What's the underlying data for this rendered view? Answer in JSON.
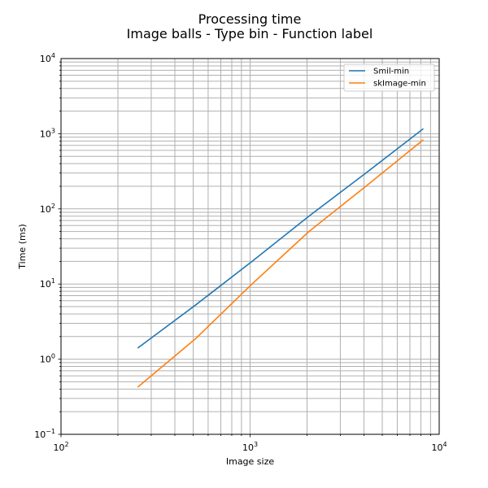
{
  "chart_data": {
    "type": "line",
    "title": "Processing time",
    "subtitle": "Image balls - Type bin - Function label",
    "xlabel": "Image size",
    "ylabel": "Time (ms)",
    "xscale": "log",
    "yscale": "log",
    "xlim": [
      100,
      10000
    ],
    "ylim": [
      0.1,
      10000
    ],
    "grid": "both major and minor",
    "legend_position": "top-right",
    "x_tick_labels": [
      {
        "base": "10",
        "exp": "2",
        "value": 100
      },
      {
        "base": "10",
        "exp": "3",
        "value": 1000
      },
      {
        "base": "10",
        "exp": "4",
        "value": 10000
      }
    ],
    "y_tick_labels": [
      {
        "base": "10",
        "exp": "−1",
        "value": 0.1
      },
      {
        "base": "10",
        "exp": "0",
        "value": 1
      },
      {
        "base": "10",
        "exp": "1",
        "value": 10
      },
      {
        "base": "10",
        "exp": "2",
        "value": 100
      },
      {
        "base": "10",
        "exp": "3",
        "value": 1000
      },
      {
        "base": "10",
        "exp": "4",
        "value": 10000
      }
    ],
    "series": [
      {
        "name": "Smil-min",
        "color": "#1f77b4",
        "x": [
          256,
          512,
          1024,
          2048,
          4096,
          8192
        ],
        "y": [
          1.42,
          5.2,
          20,
          80,
          300,
          1150
        ]
      },
      {
        "name": "skImage-min",
        "color": "#ff7f0e",
        "x": [
          256,
          512,
          1024,
          2048,
          4096,
          8192
        ],
        "y": [
          0.43,
          1.85,
          10,
          50,
          200,
          820
        ]
      }
    ]
  }
}
